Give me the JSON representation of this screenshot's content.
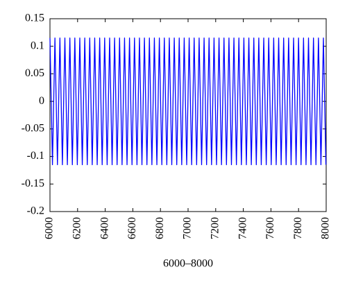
{
  "chart_data": {
    "type": "line",
    "xlabel": "6000–8000",
    "color": "#0000ff",
    "x": [
      6000,
      6018,
      6036,
      6054,
      6072,
      6090,
      6108,
      6126,
      6144,
      6162,
      6180,
      6198,
      6216,
      6234,
      6252,
      6270,
      6288,
      6306,
      6324,
      6342,
      6360,
      6378,
      6396,
      6414,
      6432,
      6450,
      6468,
      6486,
      6504,
      6522,
      6540,
      6558,
      6576,
      6594,
      6612,
      6630,
      6648,
      6666,
      6684,
      6702,
      6720,
      6738,
      6756,
      6774,
      6792,
      6810,
      6828,
      6846,
      6864,
      6882,
      6900,
      6918,
      6936,
      6954,
      6972,
      6990,
      7008,
      7026,
      7044,
      7062,
      7080,
      7098,
      7116,
      7134,
      7152,
      7170,
      7188,
      7206,
      7224,
      7242,
      7260,
      7278,
      7296,
      7314,
      7332,
      7350,
      7368,
      7386,
      7404,
      7422,
      7440,
      7458,
      7476,
      7494,
      7512,
      7530,
      7548,
      7566,
      7584,
      7602,
      7620,
      7638,
      7656,
      7674,
      7692,
      7710,
      7728,
      7746,
      7764,
      7782,
      7800,
      7818,
      7836,
      7854,
      7872,
      7890,
      7908,
      7926,
      7944,
      7962,
      7980,
      7998
    ],
    "values": [
      0.115,
      -0.115,
      0.115,
      -0.115,
      0.115,
      -0.115,
      0.115,
      -0.115,
      0.115,
      -0.115,
      0.115,
      -0.115,
      0.115,
      -0.115,
      0.115,
      -0.115,
      0.115,
      -0.115,
      0.115,
      -0.115,
      0.115,
      -0.115,
      0.115,
      -0.115,
      0.115,
      -0.115,
      0.115,
      -0.115,
      0.115,
      -0.115,
      0.115,
      -0.115,
      0.115,
      -0.115,
      0.115,
      -0.115,
      0.115,
      -0.115,
      0.115,
      -0.115,
      0.115,
      -0.115,
      0.115,
      -0.115,
      0.115,
      -0.115,
      0.115,
      -0.115,
      0.115,
      -0.115,
      0.115,
      -0.115,
      0.115,
      -0.115,
      0.115,
      -0.115,
      0.115,
      -0.115,
      0.115,
      -0.115,
      0.115,
      -0.115,
      0.115,
      -0.115,
      0.115,
      -0.115,
      0.115,
      -0.115,
      0.115,
      -0.115,
      0.115,
      -0.115,
      0.115,
      -0.115,
      0.115,
      -0.115,
      0.115,
      -0.115,
      0.115,
      -0.115,
      0.115,
      -0.115,
      0.115,
      -0.115,
      0.115,
      -0.115,
      0.115,
      -0.115,
      0.115,
      -0.115,
      0.115,
      -0.115,
      0.115,
      -0.115,
      0.115,
      -0.115,
      0.115,
      -0.115,
      0.115,
      -0.115,
      0.115,
      -0.115,
      0.115,
      -0.115,
      0.115,
      -0.115,
      0.115,
      -0.115,
      0.115,
      -0.115,
      0.115,
      -0.115
    ],
    "xlim": [
      6000,
      8000
    ],
    "xticks": [
      6000,
      6200,
      6400,
      6600,
      6800,
      7000,
      7200,
      7400,
      7600,
      7800,
      8000
    ],
    "ylim": [
      -0.2,
      0.15
    ],
    "yticks": [
      -0.2,
      -0.15,
      -0.1,
      -0.05,
      0,
      0.05,
      0.1,
      0.15
    ]
  }
}
